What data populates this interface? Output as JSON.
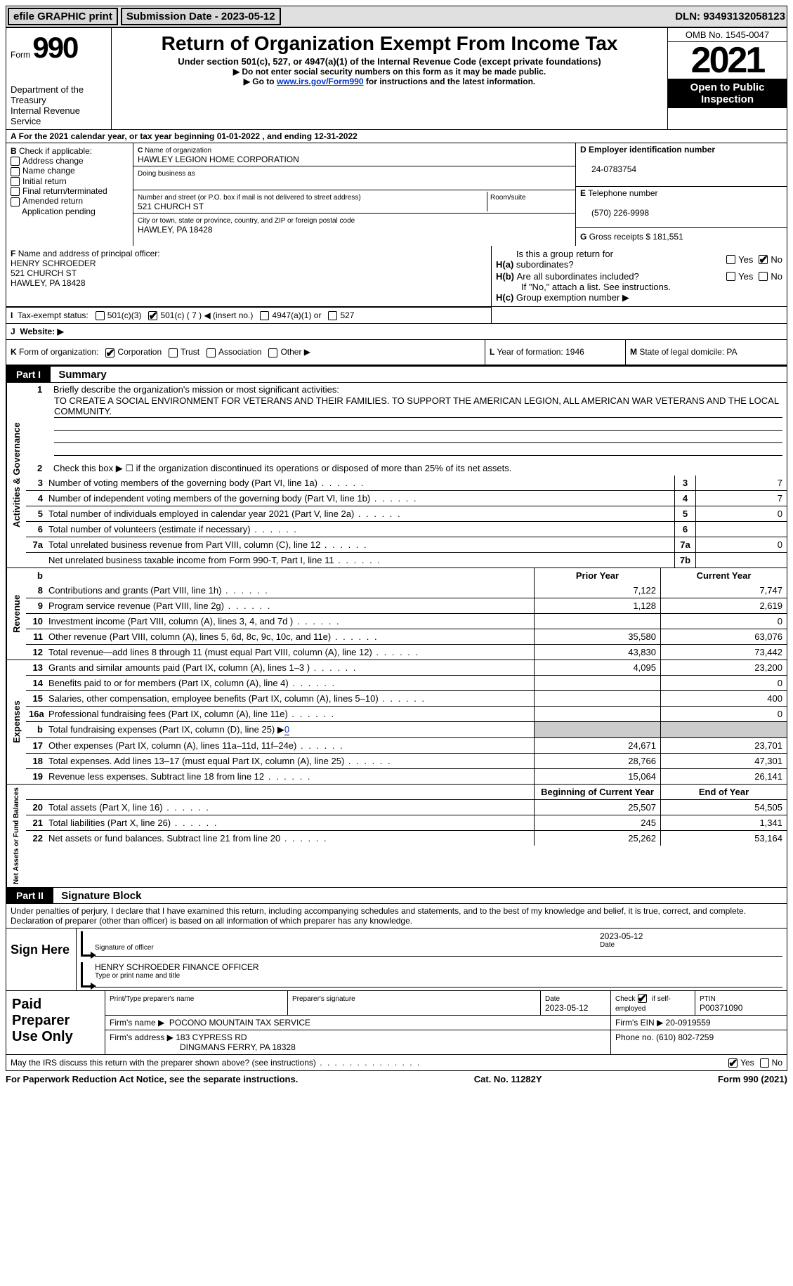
{
  "top": {
    "efile": "efile GRAPHIC print",
    "submission_label": "Submission Date - ",
    "submission_date": "2023-05-12",
    "dln_label": "DLN: ",
    "dln": "93493132058123"
  },
  "header": {
    "form_label": "Form",
    "form_num": "990",
    "dept": "Department of the Treasury\nInternal Revenue Service",
    "title": "Return of Organization Exempt From Income Tax",
    "sub": "Under section 501(c), 527, or 4947(a)(1) of the Internal Revenue Code (except private foundations)",
    "note1": "Do not enter social security numbers on this form as it may be made public.",
    "note2_pre": "Go to ",
    "note2_link": "www.irs.gov/Form990",
    "note2_post": " for instructions and the latest information.",
    "omb": "OMB No. 1545-0047",
    "year": "2021",
    "inspect": "Open to Public Inspection"
  },
  "line_a": {
    "text_pre": "For the 2021 calendar year, or tax year beginning ",
    "begin": "01-01-2022",
    "mid": "  , and ending ",
    "end": "12-31-2022"
  },
  "section_b": {
    "label": "Check if applicable:",
    "opts": [
      "Address change",
      "Name change",
      "Initial return",
      "Final return/terminated",
      "Amended return",
      "Application pending"
    ],
    "b_prefix": "B"
  },
  "section_c": {
    "name_label": "Name of organization",
    "c_prefix": "C",
    "org_name": "HAWLEY LEGION HOME CORPORATION",
    "dba_label": "Doing business as",
    "dba": "",
    "addr_label": "Number and street (or P.O. box if mail is not delivered to street address)",
    "room_label": "Room/suite",
    "addr": "521 CHURCH ST",
    "city_label": "City or town, state or province, country, and ZIP or foreign postal code",
    "city": "HAWLEY, PA  18428"
  },
  "section_d": {
    "ein_label": "Employer identification number",
    "d_prefix": "D",
    "ein": "24-0783754",
    "e_prefix": "E",
    "phone_label": "Telephone number",
    "phone": "(570) 226-9998",
    "g_prefix": "G",
    "gross_label": "Gross receipts $",
    "gross": "181,551"
  },
  "section_f": {
    "f_prefix": "F",
    "label": "Name and address of principal officer:",
    "name": "HENRY SCHROEDER",
    "addr1": "521 CHURCH ST",
    "addr2": "HAWLEY, PA  18428"
  },
  "section_h": {
    "ha_label": "Is this a group return for subordinates?",
    "ha_prefix": "H(a)",
    "hb_label": "Are all subordinates included?",
    "hb_prefix": "H(b)",
    "hb_note": "If \"No,\" attach a list. See instructions.",
    "hc_label": "Group exemption number ▶",
    "hc_prefix": "H(c)",
    "yes": "Yes",
    "no": "No"
  },
  "line_i": {
    "prefix": "I",
    "label": "Tax-exempt status:",
    "o1": "501(c)(3)",
    "o2": "501(c) ( 7 ) ◀ (insert no.)",
    "o3": "4947(a)(1) or",
    "o4": "527"
  },
  "line_j": {
    "prefix": "J",
    "label": "Website: ▶"
  },
  "line_k": {
    "prefix": "K",
    "label": "Form of organization:",
    "o1": "Corporation",
    "o2": "Trust",
    "o3": "Association",
    "o4": "Other ▶"
  },
  "line_l": {
    "prefix": "L",
    "label": "Year of formation:",
    "val": "1946"
  },
  "line_m": {
    "prefix": "M",
    "label": "State of legal domicile:",
    "val": "PA"
  },
  "part1": {
    "label": "Part I",
    "title": "Summary"
  },
  "summary": {
    "q1_label": "Briefly describe the organization's mission or most significant activities:",
    "q1_num": "1",
    "mission": "TO CREATE A SOCIAL ENVIRONMENT FOR VETERANS AND THEIR FAMILIES. TO SUPPORT THE AMERICAN LEGION, ALL AMERICAN WAR VETERANS AND THE LOCAL COMMUNITY.",
    "q2_num": "2",
    "q2": "Check this box ▶ ☐ if the organization discontinued its operations or disposed of more than 25% of its net assets.",
    "lines_top": [
      {
        "n": "3",
        "d": "Number of voting members of the governing body (Part VI, line 1a)",
        "box": "3",
        "v": "7"
      },
      {
        "n": "4",
        "d": "Number of independent voting members of the governing body (Part VI, line 1b)",
        "box": "4",
        "v": "7"
      },
      {
        "n": "5",
        "d": "Total number of individuals employed in calendar year 2021 (Part V, line 2a)",
        "box": "5",
        "v": "0"
      },
      {
        "n": "6",
        "d": "Total number of volunteers (estimate if necessary)",
        "box": "6",
        "v": ""
      },
      {
        "n": "7a",
        "d": "Total unrelated business revenue from Part VIII, column (C), line 12",
        "box": "7a",
        "v": "0"
      },
      {
        "n": "",
        "d": "Net unrelated business taxable income from Form 990-T, Part I, line 11",
        "box": "7b",
        "v": ""
      }
    ],
    "prior_hdr": "Prior Year",
    "curr_hdr": "Current Year",
    "b_num": "b",
    "revenue": [
      {
        "n": "8",
        "d": "Contributions and grants (Part VIII, line 1h)",
        "p": "7,122",
        "c": "7,747"
      },
      {
        "n": "9",
        "d": "Program service revenue (Part VIII, line 2g)",
        "p": "1,128",
        "c": "2,619"
      },
      {
        "n": "10",
        "d": "Investment income (Part VIII, column (A), lines 3, 4, and 7d )",
        "p": "",
        "c": "0"
      },
      {
        "n": "11",
        "d": "Other revenue (Part VIII, column (A), lines 5, 6d, 8c, 9c, 10c, and 11e)",
        "p": "35,580",
        "c": "63,076"
      },
      {
        "n": "12",
        "d": "Total revenue—add lines 8 through 11 (must equal Part VIII, column (A), line 12)",
        "p": "43,830",
        "c": "73,442"
      }
    ],
    "expenses": [
      {
        "n": "13",
        "d": "Grants and similar amounts paid (Part IX, column (A), lines 1–3 )",
        "p": "4,095",
        "c": "23,200"
      },
      {
        "n": "14",
        "d": "Benefits paid to or for members (Part IX, column (A), line 4)",
        "p": "",
        "c": "0"
      },
      {
        "n": "15",
        "d": "Salaries, other compensation, employee benefits (Part IX, column (A), lines 5–10)",
        "p": "",
        "c": "400"
      },
      {
        "n": "16a",
        "d": "Professional fundraising fees (Part IX, column (A), line 11e)",
        "p": "",
        "c": "0"
      }
    ],
    "line_b": {
      "n": "b",
      "d": "Total fundraising expenses (Part IX, column (D), line 25) ▶",
      "v": "0"
    },
    "expenses2": [
      {
        "n": "17",
        "d": "Other expenses (Part IX, column (A), lines 11a–11d, 11f–24e)",
        "p": "24,671",
        "c": "23,701"
      },
      {
        "n": "18",
        "d": "Total expenses. Add lines 13–17 (must equal Part IX, column (A), line 25)",
        "p": "28,766",
        "c": "47,301"
      },
      {
        "n": "19",
        "d": "Revenue less expenses. Subtract line 18 from line 12",
        "p": "15,064",
        "c": "26,141"
      }
    ],
    "begin_hdr": "Beginning of Current Year",
    "end_hdr": "End of Year",
    "netassets": [
      {
        "n": "20",
        "d": "Total assets (Part X, line 16)",
        "p": "25,507",
        "c": "54,505"
      },
      {
        "n": "21",
        "d": "Total liabilities (Part X, line 26)",
        "p": "245",
        "c": "1,341"
      },
      {
        "n": "22",
        "d": "Net assets or fund balances. Subtract line 21 from line 20",
        "p": "25,262",
        "c": "53,164"
      }
    ],
    "vlabels": {
      "gov": "Activities & Governance",
      "rev": "Revenue",
      "exp": "Expenses",
      "net": "Net Assets or Fund Balances"
    }
  },
  "part2": {
    "label": "Part II",
    "title": "Signature Block"
  },
  "sig": {
    "penalty": "Under penalties of perjury, I declare that I have examined this return, including accompanying schedules and statements, and to the best of my knowledge and belief, it is true, correct, and complete. Declaration of preparer (other than officer) is based on all information of which preparer has any knowledge.",
    "sign_here": "Sign Here",
    "sig_officer": "Signature of officer",
    "date_label": "Date",
    "sig_date": "2023-05-12",
    "name_line": "HENRY SCHROEDER FINANCE OFFICER",
    "name_label": "Type or print name and title"
  },
  "paid": {
    "title": "Paid Preparer Use Only",
    "h1": "Print/Type preparer's name",
    "h2": "Preparer's signature",
    "h3_label": "Date",
    "h3": "2023-05-12",
    "h4_label": "Check",
    "h4_suffix": "if self-employed",
    "h5_label": "PTIN",
    "h5": "P00371090",
    "firm_name_label": "Firm's name    ▶",
    "firm_name": "POCONO MOUNTAIN TAX SERVICE",
    "firm_ein_label": "Firm's EIN ▶",
    "firm_ein": "20-0919559",
    "firm_addr_label": "Firm's address ▶",
    "firm_addr1": "183 CYPRESS RD",
    "firm_addr2": "DINGMANS FERRY, PA  18328",
    "phone_label": "Phone no.",
    "phone": "(610) 802-7259"
  },
  "discuss": {
    "text": "May the IRS discuss this return with the preparer shown above? (see instructions)",
    "yes": "Yes",
    "no": "No"
  },
  "footer": {
    "left": "For Paperwork Reduction Act Notice, see the separate instructions.",
    "mid": "Cat. No. 11282Y",
    "right": "Form 990 (2021)"
  }
}
